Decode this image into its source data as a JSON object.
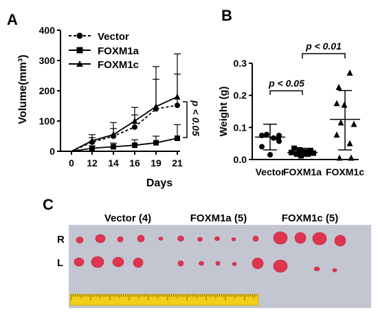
{
  "panels": {
    "a": "A",
    "b": "B",
    "c": "C"
  },
  "chart_data": [
    {
      "type": "line",
      "panel": "A",
      "ylabel": "Volume(mm³)",
      "xlabel": "Days",
      "x": [
        0,
        12,
        14,
        16,
        19,
        21
      ],
      "x_tick_labels": [
        "0",
        "12",
        "14",
        "16",
        "19",
        "21"
      ],
      "y_ticks": [
        0,
        100,
        200,
        300,
        400
      ],
      "ylim": [
        0,
        400
      ],
      "legend_placement": "top-left",
      "annotation": "p < 0.05",
      "series": [
        {
          "name": "Vector",
          "marker": "circle",
          "dash": true,
          "values": [
            0,
            30,
            50,
            80,
            140,
            152
          ],
          "err_up": [
            0,
            15,
            25,
            40,
            140,
            170
          ]
        },
        {
          "name": "FOXM1a",
          "marker": "square",
          "dash": false,
          "values": [
            0,
            10,
            15,
            20,
            28,
            43
          ],
          "err_up": [
            0,
            8,
            12,
            18,
            22,
            45
          ]
        },
        {
          "name": "FOXM1c",
          "marker": "triangle",
          "dash": false,
          "values": [
            0,
            35,
            55,
            100,
            148,
            180
          ],
          "err_up": [
            0,
            20,
            40,
            45,
            90,
            75
          ]
        }
      ]
    },
    {
      "type": "scatter",
      "panel": "B",
      "ylabel": "Weight (g)",
      "categories": [
        "Vector",
        "FOXM1a",
        "FOXM1c"
      ],
      "y_ticks": [
        0.0,
        0.1,
        0.2,
        0.3
      ],
      "y_tick_labels": [
        "0.0",
        "0.1",
        "0.2",
        "0.3"
      ],
      "ylim": [
        0,
        0.3
      ],
      "groups": [
        {
          "name": "Vector",
          "marker": "circle",
          "points": [
            0.075,
            0.067,
            0.075,
            0.078,
            0.065,
            0.04,
            0.015,
            0.057
          ],
          "mean": 0.07,
          "sd_low": 0.03,
          "sd_high": 0.11
        },
        {
          "name": "FOXM1a",
          "marker": "square",
          "points": [
            0.035,
            0.03,
            0.018,
            0.017,
            0.024,
            0.028,
            0.012,
            0.017,
            0.022,
            0.02
          ],
          "mean": 0.022,
          "sd_low": 0.01,
          "sd_high": 0.035
        },
        {
          "name": "FOXM1c",
          "marker": "triangle",
          "points": [
            0.27,
            0.225,
            0.175,
            0.17,
            0.115,
            0.11,
            0.077,
            0.05,
            0.005,
            0.005
          ],
          "mean": 0.125,
          "sd_low": 0.03,
          "sd_high": 0.215
        }
      ],
      "annotations": [
        {
          "text": "p < 0.05",
          "between": [
            "Vector",
            "FOXM1a"
          ]
        },
        {
          "text": "p < 0.01",
          "between": [
            "FOXM1a",
            "FOXM1c"
          ]
        }
      ]
    }
  ],
  "photo": {
    "group_labels": [
      "Vector (4)",
      "FOXM1a (5)",
      "FOXM1c (5)"
    ],
    "row_labels": [
      "R",
      "L"
    ],
    "background_color": "#c9ccd7",
    "tumor_color": "#e0354f",
    "ruler_color": "#f2cf18"
  }
}
